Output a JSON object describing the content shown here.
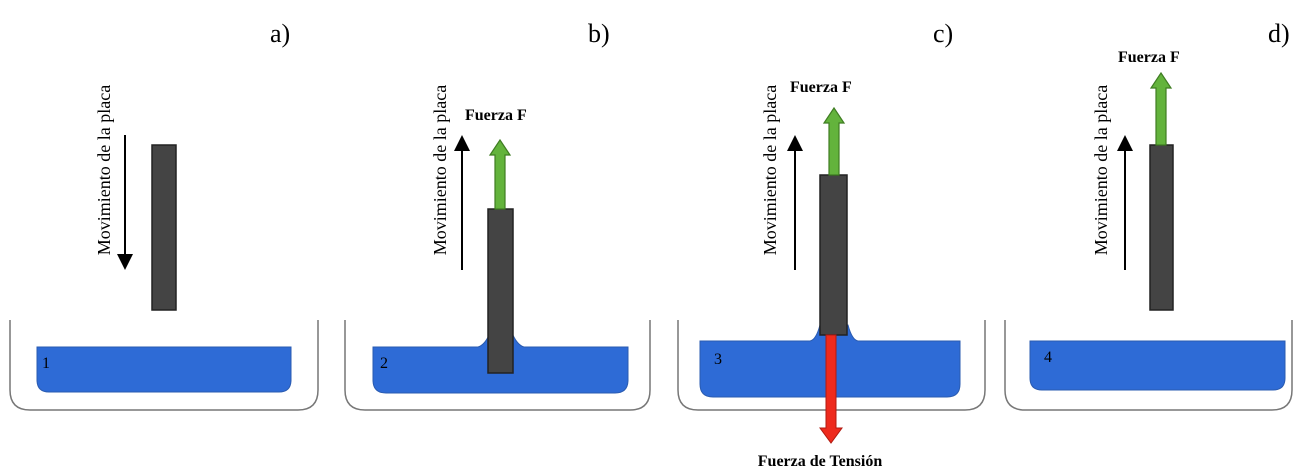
{
  "panels": [
    {
      "letter": "a)",
      "number": "1",
      "movement_label": "Movimiento de la placa"
    },
    {
      "letter": "b)",
      "number": "2",
      "movement_label": "Movimiento de la placa",
      "force_label": "Fuerza F"
    },
    {
      "letter": "c)",
      "number": "3",
      "movement_label": "Movimiento de la placa",
      "force_label": "Fuerza F",
      "tension_label": "Fuerza de Tensión"
    },
    {
      "letter": "d)",
      "number": "4",
      "movement_label": "Movimiento de la placa",
      "force_label": "Fuerza F"
    }
  ]
}
